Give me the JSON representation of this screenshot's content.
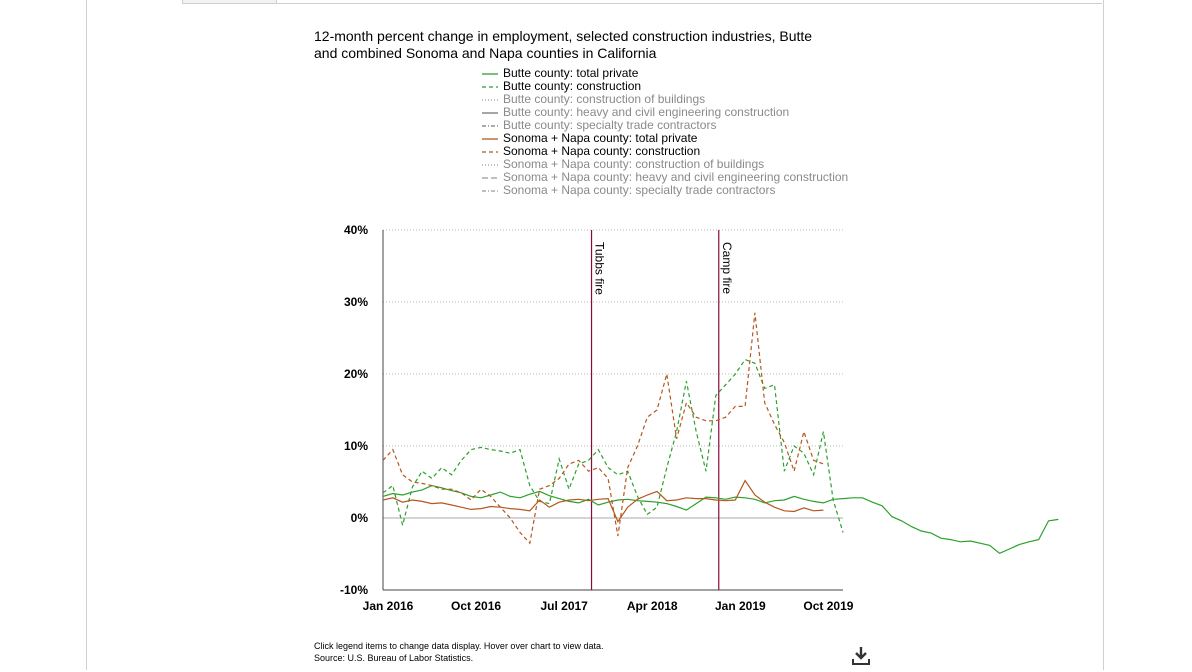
{
  "chart_title": "12-month percent change in employment, selected construction industries, Butte and combined Sonoma and Napa counties in California",
  "legend": [
    {
      "label": "Butte county: total private",
      "color": "#2ca02c",
      "dash": "solid",
      "active": true
    },
    {
      "label": "Butte county: construction",
      "color": "#2ca02c",
      "dash": "dashed",
      "active": true
    },
    {
      "label": "Butte county: construction of buildings",
      "color": "#999999",
      "dash": "dotted",
      "active": false
    },
    {
      "label": "Butte county: heavy and civil engineering construction",
      "color": "#777777",
      "dash": "solid",
      "active": false
    },
    {
      "label": "Butte county: specialty trade contractors",
      "color": "#777777",
      "dash": "dashdot",
      "active": false
    },
    {
      "label": "Sonoma + Napa county: total private",
      "color": "#b5571f",
      "dash": "solid",
      "active": true
    },
    {
      "label": "Sonoma + Napa county: construction",
      "color": "#b5571f",
      "dash": "dashed",
      "active": true
    },
    {
      "label": "Sonoma + Napa county: construction of buildings",
      "color": "#999999",
      "dash": "dotted",
      "active": false
    },
    {
      "label": "Sonoma + Napa county: heavy and civil engineering construction",
      "color": "#999999",
      "dash": "longdash",
      "active": false
    },
    {
      "label": "Sonoma + Napa county: specialty trade contractors",
      "color": "#999999",
      "dash": "dashdot",
      "active": false
    }
  ],
  "footer_note": "Click legend items to change data display. Hover over chart to view data.",
  "source": "Source: U.S. Bureau of Labor Statistics.",
  "chart_data": {
    "type": "line",
    "title": "12-month percent change in employment, selected construction industries, Butte and combined Sonoma and Napa counties in California",
    "x_tick_labels": [
      "Jan 2016",
      "Oct 2016",
      "Jul 2017",
      "Apr 2018",
      "Jan 2019",
      "Oct 2019"
    ],
    "y_tick_labels": [
      "40%",
      "30%",
      "20%",
      "10%",
      "0%",
      "-10%"
    ],
    "ylim": [
      -10,
      40
    ],
    "xlim": [
      "2016-01",
      "2019-12"
    ],
    "grid": true,
    "events": [
      {
        "label": "Tubbs fire",
        "date": "2017-10",
        "color": "#8b0a3a"
      },
      {
        "label": "Camp fire",
        "date": "2018-11",
        "color": "#8b0a3a"
      }
    ],
    "series": [
      {
        "name": "Butte county: total private",
        "color": "#2ca02c",
        "dash": "solid",
        "start": "2016-01",
        "values": [
          3.0,
          3.4,
          3.2,
          3.6,
          3.9,
          4.5,
          4.2,
          3.8,
          3.5,
          3.0,
          2.8,
          3.2,
          3.6,
          3.0,
          2.8,
          3.3,
          3.7,
          3.1,
          2.7,
          2.3,
          2.1,
          2.6,
          1.8,
          2.2,
          2.5,
          2.6,
          2.4,
          2.3,
          2.2,
          2.0,
          1.6,
          1.1,
          2.0,
          2.9,
          2.8,
          2.6,
          2.9,
          2.8,
          2.6,
          2.1,
          2.4,
          2.5,
          3.0,
          2.6,
          2.3,
          2.1,
          2.6,
          2.7,
          2.8,
          2.8,
          2.2,
          1.7,
          0.2,
          -0.4,
          -1.2,
          -1.8,
          -2.1,
          -2.8,
          -3.0,
          -3.3,
          -3.2,
          -3.5,
          -3.8,
          -4.9,
          -4.3,
          -3.7,
          -3.3,
          -3.0,
          -0.4,
          -0.2
        ]
      },
      {
        "name": "Butte county: construction",
        "color": "#2ca02c",
        "dash": "dashed",
        "start": "2016-01",
        "values": [
          3.5,
          4.5,
          -1.0,
          4.3,
          6.5,
          5.5,
          7.0,
          6.0,
          8.0,
          9.5,
          9.8,
          9.5,
          9.3,
          9.0,
          9.5,
          4.5,
          2.3,
          2.0,
          8.2,
          4.0,
          7.5,
          8.0,
          9.5,
          7.0,
          6.0,
          6.5,
          3.0,
          0.5,
          1.5,
          7.0,
          12.0,
          19.0,
          12.0,
          6.5,
          17.0,
          18.5,
          20.0,
          22.0,
          21.5,
          18.0,
          18.5,
          6.5,
          10.0,
          9.0,
          6.0,
          12.0,
          2.5,
          -2.0
        ]
      },
      {
        "name": "Sonoma + Napa county: total private",
        "color": "#b5571f",
        "dash": "solid",
        "start": "2016-01",
        "values": [
          2.5,
          2.8,
          2.2,
          2.5,
          2.3,
          2.0,
          2.1,
          1.8,
          1.5,
          1.2,
          1.3,
          1.6,
          1.5,
          1.3,
          1.2,
          1.0,
          2.5,
          1.5,
          2.2,
          2.5,
          2.6,
          2.4,
          2.6,
          2.7,
          -0.5,
          1.5,
          2.6,
          3.2,
          3.7,
          2.4,
          2.5,
          2.8,
          2.7,
          2.7,
          2.5,
          2.4,
          2.5,
          5.2,
          3.2,
          2.2,
          1.5,
          1.0,
          0.9,
          1.4,
          1.0,
          1.1
        ]
      },
      {
        "name": "Sonoma + Napa county: construction",
        "color": "#b5571f",
        "dash": "dashed",
        "start": "2016-01",
        "values": [
          8.0,
          9.5,
          6.0,
          5.0,
          4.8,
          4.5,
          4.0,
          4.0,
          3.5,
          2.5,
          4.0,
          3.0,
          1.5,
          0.0,
          -2.0,
          -3.5,
          4.0,
          4.5,
          5.5,
          7.5,
          8.0,
          6.5,
          7.0,
          5.5,
          -2.5,
          7.0,
          10.0,
          14.0,
          15.0,
          20.0,
          11.0,
          16.0,
          14.0,
          13.5,
          13.5,
          14.0,
          15.5,
          15.5,
          28.5,
          16.0,
          13.0,
          10.5,
          6.5,
          12.0,
          8.0,
          7.5
        ]
      }
    ]
  }
}
